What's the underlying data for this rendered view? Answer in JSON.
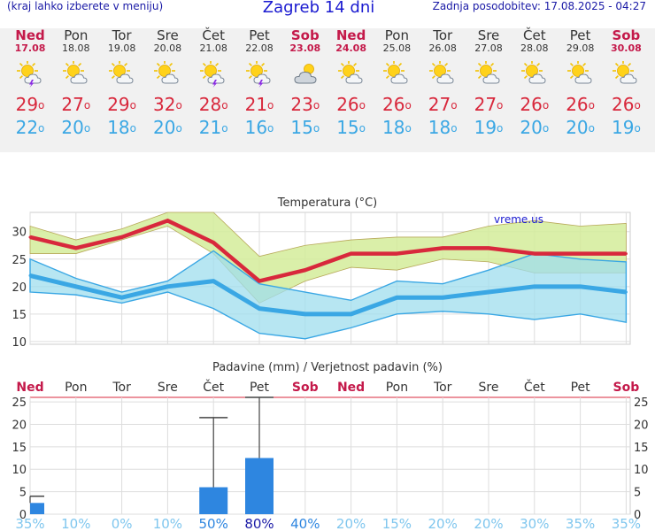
{
  "header": {
    "hint": "(kraj lahko izberete v meniju)",
    "title": "Zagreb 14 dni",
    "updated": "Zadnja posodobitev: 17.08.2025 - 04:27"
  },
  "days": [
    {
      "name": "Ned",
      "date": "17.08",
      "weekend": true,
      "icon": "sun-cloud-storm-icon",
      "max": "29",
      "min": "22"
    },
    {
      "name": "Pon",
      "date": "18.08",
      "weekend": false,
      "icon": "sun-cloud-icon",
      "max": "27",
      "min": "20"
    },
    {
      "name": "Tor",
      "date": "19.08",
      "weekend": false,
      "icon": "sun-cloud-icon",
      "max": "29",
      "min": "18"
    },
    {
      "name": "Sre",
      "date": "20.08",
      "weekend": false,
      "icon": "sun-cloud-icon",
      "max": "32",
      "min": "20"
    },
    {
      "name": "Čet",
      "date": "21.08",
      "weekend": false,
      "icon": "sun-cloud-storm-icon",
      "max": "28",
      "min": "21"
    },
    {
      "name": "Pet",
      "date": "22.08",
      "weekend": false,
      "icon": "sun-cloud-storm-icon",
      "max": "21",
      "min": "16"
    },
    {
      "name": "Sob",
      "date": "23.08",
      "weekend": true,
      "icon": "cloud-sun-icon",
      "max": "23",
      "min": "15"
    },
    {
      "name": "Ned",
      "date": "24.08",
      "weekend": true,
      "icon": "sun-cloud-icon",
      "max": "26",
      "min": "15"
    },
    {
      "name": "Pon",
      "date": "25.08",
      "weekend": false,
      "icon": "sun-cloud-icon",
      "max": "26",
      "min": "18"
    },
    {
      "name": "Tor",
      "date": "26.08",
      "weekend": false,
      "icon": "sun-cloud-icon",
      "max": "27",
      "min": "18"
    },
    {
      "name": "Sre",
      "date": "27.08",
      "weekend": false,
      "icon": "sun-cloud-icon",
      "max": "27",
      "min": "19"
    },
    {
      "name": "Čet",
      "date": "28.08",
      "weekend": false,
      "icon": "sun-cloud-icon",
      "max": "26",
      "min": "20"
    },
    {
      "name": "Pet",
      "date": "29.08",
      "weekend": false,
      "icon": "sun-cloud-icon",
      "max": "26",
      "min": "20"
    },
    {
      "name": "Sob",
      "date": "30.08",
      "weekend": true,
      "icon": "sun-cloud-icon",
      "max": "26",
      "min": "19"
    }
  ],
  "colors": {
    "weekend": "#c4194a",
    "max_line": "#d8283c",
    "min_line": "#3aa7e4",
    "max_band": "#d4ec9a",
    "min_band": "#9fdeee",
    "overlap": "#6ec87e",
    "bar": "#2e86e0"
  },
  "chart_data": [
    {
      "type": "line",
      "title": "Temperatura (°C)",
      "watermark": "vreme.us",
      "categories": [
        "Ned",
        "Pon",
        "Tor",
        "Sre",
        "Čet",
        "Pet",
        "Sob",
        "Ned",
        "Pon",
        "Tor",
        "Sre",
        "Čet",
        "Pet",
        "Sob"
      ],
      "ylim": [
        9.5,
        33.5
      ],
      "yticks": [
        10,
        15,
        20,
        25,
        30
      ],
      "grid": true,
      "series": [
        {
          "role": "max",
          "values": [
            29,
            27,
            29,
            32,
            28,
            21,
            23,
            26,
            26,
            27,
            27,
            26,
            26,
            26
          ]
        },
        {
          "role": "min",
          "values": [
            22,
            20,
            18,
            20,
            21,
            16,
            15,
            15,
            18,
            18,
            19,
            20,
            20,
            19
          ]
        }
      ],
      "max_range": {
        "upper": [
          31,
          28.5,
          30.5,
          33.5,
          33.5,
          25.5,
          27.5,
          28.5,
          29,
          29,
          31,
          32,
          31,
          31.5
        ],
        "lower": [
          26,
          26,
          28.5,
          31,
          26,
          17,
          21,
          23.5,
          23,
          25,
          24.5,
          22.5,
          22.5,
          22.5
        ]
      },
      "min_range": {
        "upper": [
          25,
          21.5,
          19,
          21,
          26.5,
          20.5,
          19,
          17.5,
          21,
          20.5,
          23,
          26,
          25,
          24.5
        ],
        "lower": [
          19,
          18.5,
          17,
          19,
          16,
          11.5,
          10.5,
          12.5,
          15,
          15.5,
          15,
          14,
          15,
          13.5
        ]
      }
    },
    {
      "type": "bar",
      "title": "Padavine (mm) / Verjetnost padavin (%)",
      "categories": [
        "Ned",
        "Pon",
        "Tor",
        "Sre",
        "Čet",
        "Pet",
        "Sob",
        "Ned",
        "Pon",
        "Tor",
        "Sre",
        "Čet",
        "Pet",
        "Sob"
      ],
      "ylim": [
        0,
        26
      ],
      "yticks": [
        0,
        5,
        10,
        15,
        20,
        25
      ],
      "values": [
        2.5,
        0,
        0,
        0,
        6,
        12.5,
        0,
        0,
        0,
        0,
        0,
        0,
        0,
        0
      ],
      "error_max": [
        4,
        0,
        0,
        0,
        21.5,
        26,
        0,
        0,
        0,
        0,
        0,
        0,
        0,
        0
      ],
      "probability": [
        "35%",
        "10%",
        "0%",
        "10%",
        "50%",
        "80%",
        "40%",
        "20%",
        "15%",
        "20%",
        "20%",
        "30%",
        "35%",
        "35%"
      ]
    }
  ]
}
